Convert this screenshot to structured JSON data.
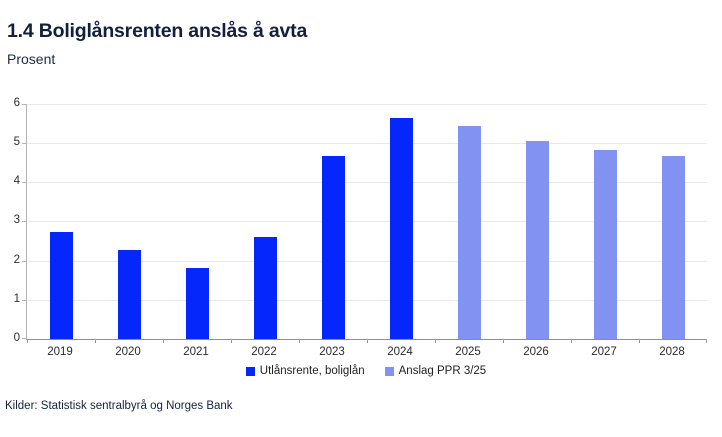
{
  "header": {
    "title": "1.4 Boliglånsrenten anslås å avta",
    "subtitle": "Prosent"
  },
  "chart_data": {
    "type": "bar",
    "title": "1.4 Boliglånsrenten anslås å avta",
    "subtitle": "Prosent",
    "categories": [
      "2019",
      "2020",
      "2021",
      "2022",
      "2023",
      "2024",
      "2025",
      "2026",
      "2027",
      "2028"
    ],
    "series": [
      {
        "name": "Utlånsrente, boliglån",
        "color": "#0527fb",
        "values": [
          2.72,
          2.28,
          1.82,
          2.6,
          4.66,
          5.63,
          null,
          null,
          null,
          null
        ]
      },
      {
        "name": "Anslag PPR 3/25",
        "color": "#8192f2",
        "values": [
          null,
          null,
          null,
          null,
          null,
          null,
          5.45,
          5.05,
          4.82,
          4.68
        ]
      }
    ],
    "xlabel": "",
    "ylabel": "",
    "ylim": [
      0,
      6
    ],
    "yticks": [
      0,
      1,
      2,
      3,
      4,
      5,
      6
    ],
    "grid": true,
    "legend_position": "bottom"
  },
  "footer": {
    "source": "Kilder: Statistisk sentralbyrå og Norges Bank"
  },
  "colors": {
    "title_text": "#121f3e",
    "axis_text": "#2e2e2e",
    "gridline": "#e9e9e9",
    "axis_line": "#b3b3b3",
    "baseline": "#8f8f8f",
    "series1": "#0527fb",
    "series2": "#8192f2"
  }
}
